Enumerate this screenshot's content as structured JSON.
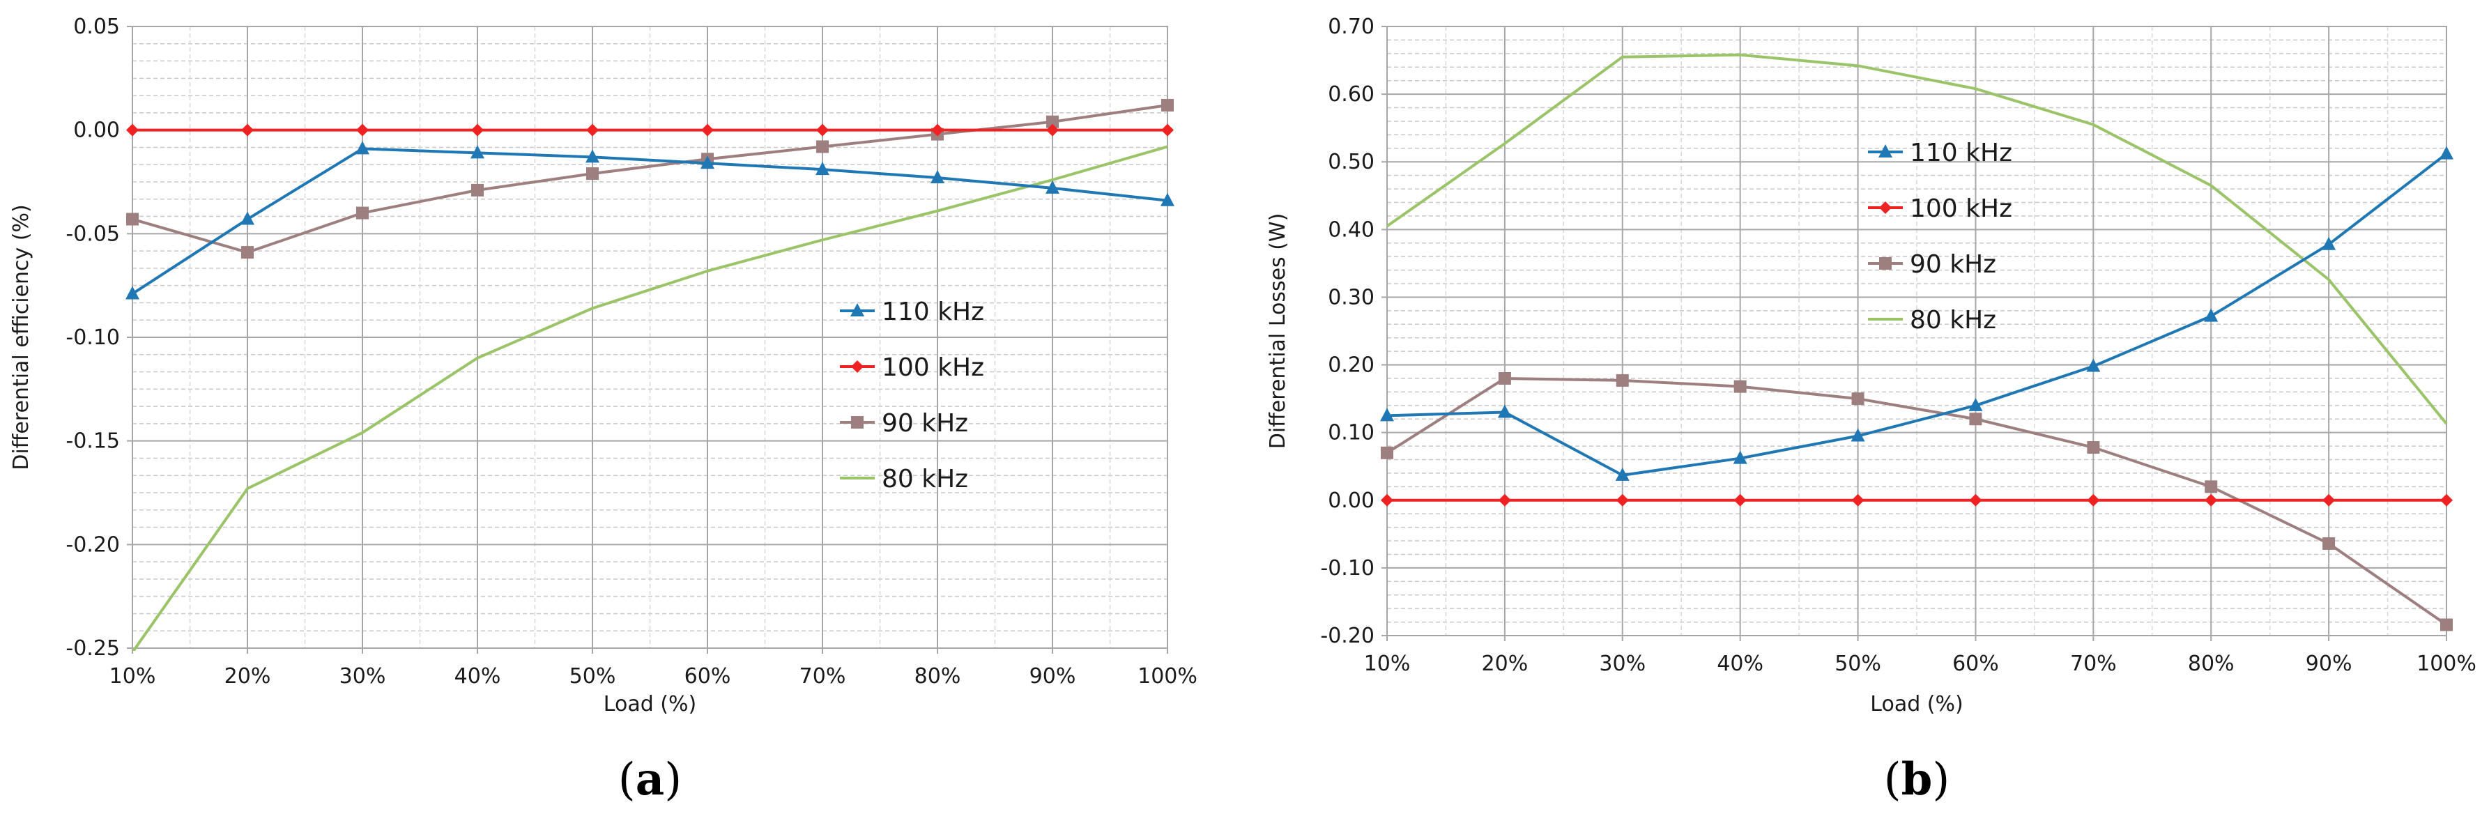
{
  "chart_data": [
    {
      "panel": "(a)",
      "panel_letter": "a",
      "type": "line",
      "title": "",
      "xlabel": "Load (%)",
      "ylabel": "Differential efficiency (%)",
      "categories": [
        "10%",
        "20%",
        "30%",
        "40%",
        "50%",
        "60%",
        "70%",
        "80%",
        "90%",
        "100%"
      ],
      "ylim": [
        -0.25,
        0.05
      ],
      "yticks": [
        0.05,
        0.0,
        -0.05,
        -0.1,
        -0.15,
        -0.2,
        -0.25
      ],
      "ytick_labels": [
        "0.05",
        "0.00",
        "-0.05",
        "-0.10",
        "-0.15",
        "-0.20",
        "-0.25"
      ],
      "minor_gridlines": 5,
      "legend_position": "center-right",
      "series": [
        {
          "name": "110 kHz",
          "color": "#1f77b4",
          "marker": "triangle",
          "values": [
            -0.079,
            -0.043,
            -0.009,
            -0.011,
            -0.013,
            -0.016,
            -0.019,
            -0.023,
            -0.028,
            -0.034
          ]
        },
        {
          "name": "100 kHz",
          "color": "#ee2222",
          "marker": "diamond",
          "values": [
            0.0,
            0.0,
            0.0,
            0.0,
            0.0,
            0.0,
            0.0,
            0.0,
            0.0,
            0.0
          ]
        },
        {
          "name": "90 kHz",
          "color": "#9e7f7f",
          "marker": "square",
          "values": [
            -0.043,
            -0.059,
            -0.04,
            -0.029,
            -0.021,
            -0.014,
            -0.008,
            -0.002,
            0.004,
            0.012
          ]
        },
        {
          "name": "80 kHz",
          "color": "#9bc468",
          "marker": "none",
          "values": [
            -0.252,
            -0.173,
            -0.146,
            -0.11,
            -0.086,
            -0.068,
            -0.053,
            -0.039,
            -0.024,
            -0.008
          ]
        }
      ]
    },
    {
      "panel": "(b)",
      "panel_letter": "b",
      "type": "line",
      "title": "",
      "xlabel": "Load (%)",
      "ylabel": "Differential Losses (W)",
      "categories": [
        "10%",
        "20%",
        "30%",
        "40%",
        "50%",
        "60%",
        "70%",
        "80%",
        "90%",
        "100%"
      ],
      "ylim": [
        -0.2,
        0.7
      ],
      "yticks": [
        0.7,
        0.6,
        0.5,
        0.4,
        0.3,
        0.2,
        0.1,
        0.0,
        -0.1,
        -0.2
      ],
      "ytick_labels": [
        "0.70",
        "0.60",
        "0.50",
        "0.40",
        "0.30",
        "0.20",
        "0.10",
        "0.00",
        "-0.10",
        "-0.20"
      ],
      "minor_gridlines": 4,
      "legend_position": "upper-center-right",
      "series": [
        {
          "name": "110 kHz",
          "color": "#1f77b4",
          "marker": "triangle",
          "values": [
            0.125,
            0.13,
            0.037,
            0.062,
            0.095,
            0.14,
            0.198,
            0.272,
            0.378,
            0.512
          ]
        },
        {
          "name": "100 kHz",
          "color": "#ee2222",
          "marker": "diamond",
          "values": [
            0.0,
            0.0,
            0.0,
            0.0,
            0.0,
            0.0,
            0.0,
            0.0,
            0.0,
            0.0
          ]
        },
        {
          "name": "90 kHz",
          "color": "#9e7f7f",
          "marker": "square",
          "values": [
            0.07,
            0.18,
            0.177,
            0.168,
            0.15,
            0.12,
            0.078,
            0.02,
            -0.064,
            -0.184
          ]
        },
        {
          "name": "80 kHz",
          "color": "#9bc468",
          "marker": "none",
          "values": [
            0.405,
            0.527,
            0.655,
            0.658,
            0.642,
            0.608,
            0.555,
            0.465,
            0.326,
            0.113
          ]
        }
      ]
    }
  ]
}
